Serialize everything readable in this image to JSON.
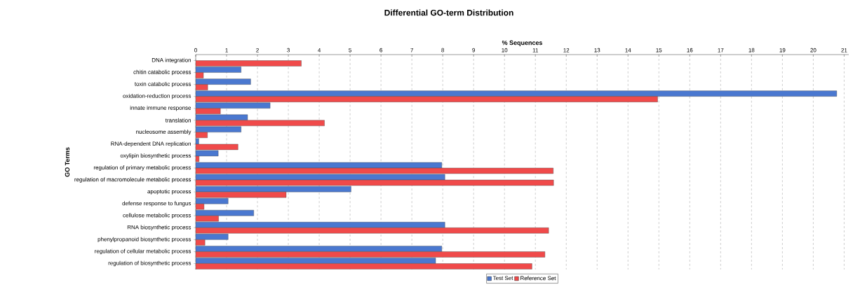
{
  "chart_data": {
    "type": "bar",
    "orientation": "horizontal",
    "title": "Differential GO-term Distribution",
    "xlabel": "% Sequences",
    "ylabel": "GO Terms",
    "categories": [
      "DNA integration",
      "chitin catabolic process",
      "toxin catabolic process",
      "oxidation-reduction process",
      "innate immune response",
      "translation",
      "nucleosome assembly",
      "RNA-dependent DNA replication",
      "oxylipin biosynthetic process",
      "regulation of primary metabolic process",
      "regulation of macromolecule metabolic process",
      "apoptotic process",
      "defense response to fungus",
      "cellulose metabolic process",
      "RNA biosynthetic process",
      "phenylpropanoid biosynthetic process",
      "regulation of cellular metabolic process",
      "regulation of biosynthetic process"
    ],
    "series": [
      {
        "name": "Test Set",
        "color": "#4a78d0",
        "values": [
          null,
          1.47,
          1.78,
          20.76,
          2.41,
          1.68,
          1.47,
          0.1,
          0.73,
          7.97,
          8.07,
          5.03,
          1.05,
          1.88,
          8.07,
          1.05,
          7.97,
          7.77
        ]
      },
      {
        "name": "Reference Set",
        "color": "#f04a4a",
        "values": [
          3.42,
          0.25,
          0.39,
          14.96,
          0.8,
          4.17,
          0.38,
          1.37,
          0.11,
          11.58,
          11.59,
          2.93,
          0.27,
          0.74,
          11.43,
          0.3,
          11.31,
          10.89
        ]
      }
    ],
    "xlim": [
      0,
      21.15
    ],
    "xticks": [
      0,
      1,
      2,
      3,
      4,
      5,
      6,
      7,
      8,
      9,
      10,
      11,
      12,
      13,
      14,
      15,
      16,
      17,
      18,
      19,
      20,
      21
    ],
    "grid": "x",
    "legend": "bottom"
  }
}
